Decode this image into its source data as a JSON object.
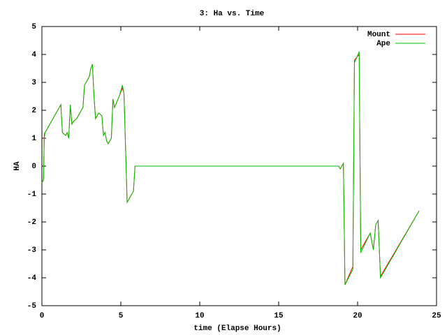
{
  "chart_data": {
    "type": "line",
    "title": "3: Ha vs. Time",
    "xlabel": "time (Elapse Hours)",
    "ylabel": "HA",
    "x": [
      0,
      0.1,
      0.15,
      0.2,
      1.2,
      1.3,
      1.5,
      1.6,
      1.7,
      1.8,
      1.9,
      2.0,
      2.2,
      2.6,
      2.7,
      3.0,
      3.1,
      3.2,
      3.3,
      3.4,
      3.6,
      3.8,
      3.9,
      4.0,
      4.1,
      4.2,
      4.4,
      4.5,
      4.6,
      4.9,
      5.1,
      5.2,
      5.4,
      5.8,
      5.9,
      18.8,
      18.9,
      19.1,
      19.2,
      19.7,
      19.8,
      20.1,
      20.2,
      20.8,
      21.0,
      21.15,
      21.3,
      21.45,
      23.9
    ],
    "series": [
      {
        "name": "Mount",
        "color": "#ff0000",
        "values": [
          -0.6,
          -0.5,
          1.15,
          1.2,
          2.2,
          1.2,
          1.1,
          1.2,
          1.0,
          2.2,
          1.5,
          1.6,
          1.7,
          2.1,
          2.9,
          3.2,
          3.5,
          3.65,
          2.5,
          1.7,
          1.9,
          1.8,
          1.1,
          1.2,
          0.9,
          0.8,
          1.0,
          2.4,
          2.1,
          2.5,
          2.8,
          2.6,
          -1.3,
          -0.9,
          0,
          0,
          -0.1,
          0.1,
          -4.25,
          -3.6,
          3.8,
          4.0,
          -3.0,
          -2.4,
          -3.0,
          -2.1,
          -1.95,
          -3.95,
          -1.6
        ]
      },
      {
        "name": "Ape",
        "color": "#00c000",
        "values": [
          -0.6,
          -0.5,
          1.0,
          1.2,
          2.2,
          1.2,
          1.1,
          1.2,
          1.0,
          2.2,
          1.5,
          1.6,
          1.7,
          2.1,
          2.9,
          3.2,
          3.5,
          3.65,
          2.5,
          1.7,
          1.9,
          1.8,
          1.1,
          1.2,
          0.9,
          0.8,
          1.0,
          2.4,
          2.1,
          2.5,
          2.9,
          2.6,
          -1.3,
          -0.9,
          0,
          0,
          -0.1,
          0.1,
          -4.25,
          -3.7,
          3.7,
          4.1,
          -3.1,
          -2.4,
          -3.0,
          -2.1,
          -1.95,
          -4.0,
          -1.6
        ]
      }
    ],
    "xlim": [
      0,
      25
    ],
    "xticks": [
      0,
      5,
      10,
      15,
      20,
      25
    ],
    "ylim": [
      -5,
      5
    ],
    "yticks": [
      -5,
      -4,
      -3,
      -2,
      -1,
      0,
      1,
      2,
      3,
      4,
      5
    ],
    "grid": false,
    "legend": "top-right"
  }
}
